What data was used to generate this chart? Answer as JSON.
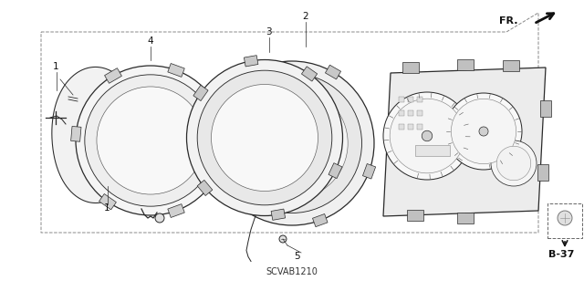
{
  "bg_color": "#ffffff",
  "line_color": "#2a2a2a",
  "title_code": "SCVAB1210",
  "page_ref": "B-37",
  "figsize": [
    6.4,
    3.19
  ],
  "dpi": 100,
  "lw": 0.9
}
